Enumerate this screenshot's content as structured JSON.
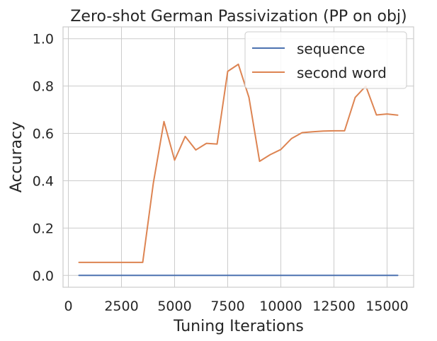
{
  "chart_data": {
    "type": "line",
    "title": "Zero-shot German Passivization (PP on obj)",
    "xlabel": "Tuning Iterations",
    "ylabel": "Accuracy",
    "xlim": [
      -250,
      16250
    ],
    "ylim": [
      -0.05,
      1.05
    ],
    "xticks": [
      0,
      2500,
      5000,
      7500,
      10000,
      12500,
      15000
    ],
    "yticks": [
      0.0,
      0.2,
      0.4,
      0.6,
      0.8,
      1.0
    ],
    "xtick_labels": [
      "0",
      "2500",
      "5000",
      "7500",
      "10000",
      "12500",
      "15000"
    ],
    "ytick_labels": [
      "0.0",
      "0.2",
      "0.4",
      "0.6",
      "0.8",
      "1.0"
    ],
    "grid": true,
    "legend_position": "top-right",
    "x": [
      500,
      1000,
      1500,
      2000,
      2500,
      3000,
      3500,
      4000,
      4500,
      5000,
      5500,
      6000,
      6500,
      7000,
      7500,
      8000,
      8500,
      9000,
      9500,
      10000,
      10500,
      11000,
      11500,
      12000,
      12500,
      13000,
      13500,
      14000,
      14500,
      15000,
      15500
    ],
    "series": [
      {
        "name": "sequence",
        "color": "#4c72b0",
        "values": [
          0,
          0,
          0,
          0,
          0,
          0,
          0,
          0,
          0,
          0,
          0,
          0,
          0,
          0,
          0,
          0,
          0,
          0,
          0,
          0,
          0,
          0,
          0,
          0,
          0,
          0,
          0,
          0,
          0,
          0,
          0
        ]
      },
      {
        "name": "second word",
        "color": "#dd8452",
        "values": [
          0.055,
          0.055,
          0.055,
          0.055,
          0.055,
          0.055,
          0.055,
          0.39,
          0.65,
          0.487,
          0.587,
          0.53,
          0.558,
          0.555,
          0.862,
          0.892,
          0.752,
          0.482,
          0.51,
          0.532,
          0.578,
          0.603,
          0.607,
          0.61,
          0.611,
          0.611,
          0.752,
          0.8,
          0.678,
          0.682,
          0.677
        ]
      }
    ]
  }
}
